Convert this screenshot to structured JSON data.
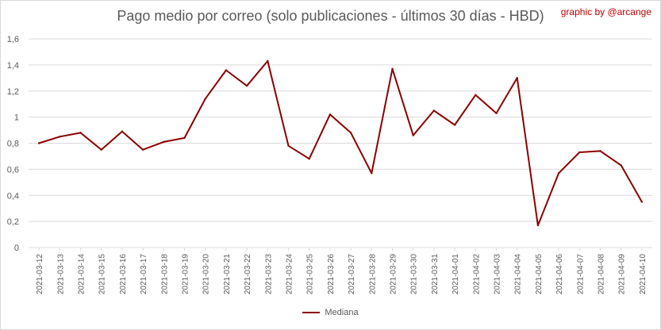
{
  "title": "Pago medio por correo (solo publicaciones - últimos 30 días - HBD)",
  "credit": "graphic by @arcange",
  "colors": {
    "line": "#8b0000",
    "grid": "#d9d9d9",
    "text": "#595959",
    "credit": "#c00000"
  },
  "chart_data": {
    "type": "line",
    "title": "Pago medio por correo (solo publicaciones - últimos 30 días - HBD)",
    "xlabel": "",
    "ylabel": "",
    "ylim": [
      0,
      1.6
    ],
    "yticks": [
      "0",
      "0,2",
      "0,4",
      "0,6",
      "0,8",
      "1",
      "1,2",
      "1,4",
      "1,6"
    ],
    "grid": true,
    "legend_position": "bottom",
    "categories": [
      "2021-03-12",
      "2021-03-13",
      "2021-03-14",
      "2021-03-15",
      "2021-03-16",
      "2021-03-17",
      "2021-03-18",
      "2021-03-19",
      "2021-03-20",
      "2021-03-21",
      "2021-03-22",
      "2021-03-23",
      "2021-03-24",
      "2021-03-25",
      "2021-03-26",
      "2021-03-27",
      "2021-03-28",
      "2021-03-29",
      "2021-03-30",
      "2021-03-31",
      "2021-04-01",
      "2021-04-02",
      "2021-04-03",
      "2021-04-04",
      "2021-04-05",
      "2021-04-06",
      "2021-04-07",
      "2021-04-08",
      "2021-04-09",
      "2021-04-10"
    ],
    "series": [
      {
        "name": "Mediana",
        "color": "#8b0000",
        "values": [
          0.8,
          0.85,
          0.88,
          0.75,
          0.89,
          0.75,
          0.81,
          0.84,
          1.14,
          1.36,
          1.24,
          1.43,
          0.78,
          0.68,
          1.02,
          0.88,
          0.57,
          1.37,
          0.86,
          1.05,
          0.94,
          1.17,
          1.03,
          1.3,
          0.17,
          0.57,
          0.73,
          0.74,
          0.63,
          0.35
        ]
      }
    ]
  }
}
